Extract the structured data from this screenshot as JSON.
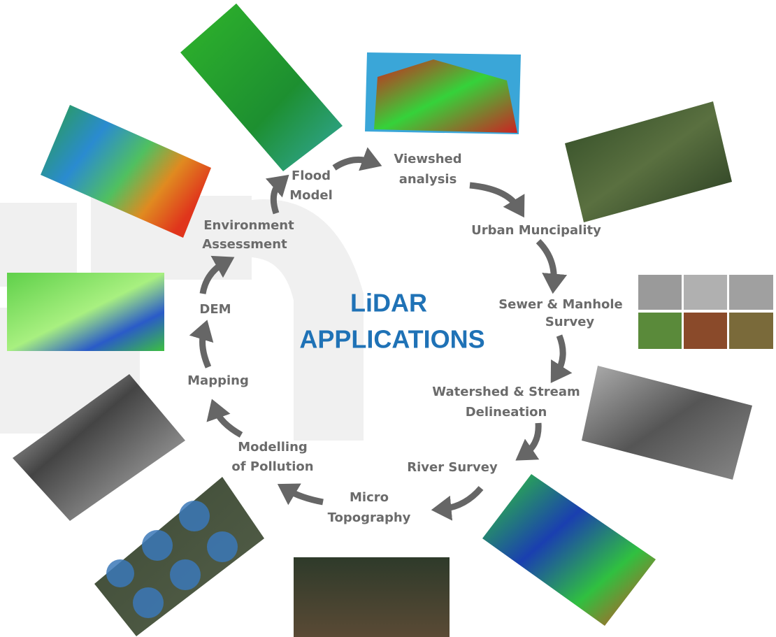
{
  "center": {
    "lines": [
      "LiDAR",
      "APPLICATIONS"
    ]
  },
  "nodes": [
    {
      "lines": [
        "Flood",
        "Model"
      ]
    },
    {
      "lines": [
        "Viewshed",
        "analysis"
      ]
    },
    {
      "lines": [
        "Urban  Muncipality"
      ]
    },
    {
      "lines": [
        "Sewer & Manhole",
        "Survey"
      ]
    },
    {
      "lines": [
        "Watershed & Stream",
        "Delineation"
      ]
    },
    {
      "lines": [
        "River Survey"
      ]
    },
    {
      "lines": [
        "Micro",
        "Topography"
      ]
    },
    {
      "lines": [
        "Modelling",
        "of Pollution"
      ]
    },
    {
      "lines": [
        "Mapping"
      ]
    },
    {
      "lines": [
        "DEM"
      ]
    },
    {
      "lines": [
        "Environment",
        "Assessment"
      ]
    }
  ]
}
